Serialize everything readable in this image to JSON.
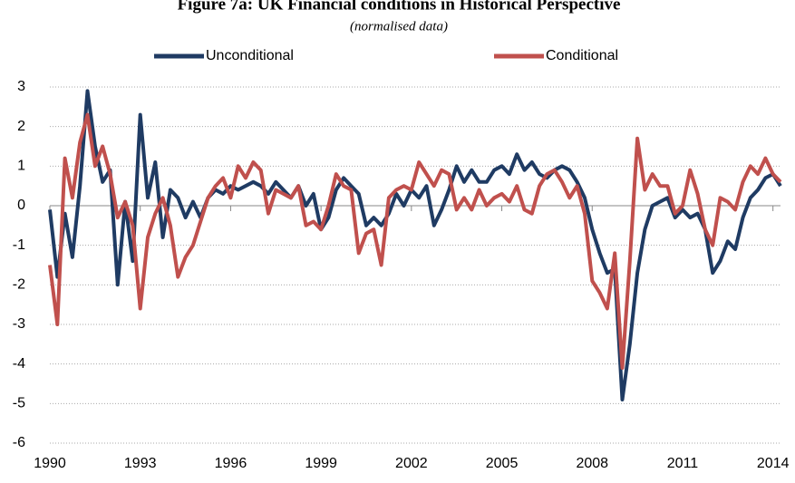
{
  "chart_data": {
    "type": "line",
    "title": "Figure 7a: UK Financial conditions in Historical Perspective",
    "subtitle": "(normalised data)",
    "x": [
      1990,
      1990.25,
      1990.5,
      1990.75,
      1991,
      1991.25,
      1991.5,
      1991.75,
      1992,
      1992.25,
      1992.5,
      1992.75,
      1993,
      1993.25,
      1993.5,
      1993.75,
      1994,
      1994.25,
      1994.5,
      1994.75,
      1995,
      1995.25,
      1995.5,
      1995.75,
      1996,
      1996.25,
      1996.5,
      1996.75,
      1997,
      1997.25,
      1997.5,
      1997.75,
      1998,
      1998.25,
      1998.5,
      1998.75,
      1999,
      1999.25,
      1999.5,
      1999.75,
      2000,
      2000.25,
      2000.5,
      2000.75,
      2001,
      2001.25,
      2001.5,
      2001.75,
      2002,
      2002.25,
      2002.5,
      2002.75,
      2003,
      2003.25,
      2003.5,
      2003.75,
      2004,
      2004.25,
      2004.5,
      2004.75,
      2005,
      2005.25,
      2005.5,
      2005.75,
      2006,
      2006.25,
      2006.5,
      2006.75,
      2007,
      2007.25,
      2007.5,
      2007.75,
      2008,
      2008.25,
      2008.5,
      2008.75,
      2009,
      2009.25,
      2009.5,
      2009.75,
      2010,
      2010.25,
      2010.5,
      2010.75,
      2011,
      2011.25,
      2011.5,
      2011.75,
      2012,
      2012.25,
      2012.5,
      2012.75,
      2013,
      2013.25,
      2013.5,
      2013.75,
      2014,
      2014.25
    ],
    "series": [
      {
        "name": "Unconditional",
        "color": "#1f3b63",
        "values": [
          -0.1,
          -1.8,
          -0.2,
          -1.3,
          0.5,
          2.9,
          1.5,
          0.6,
          0.9,
          -2.0,
          0.1,
          -1.4,
          2.3,
          0.2,
          1.1,
          -0.8,
          0.4,
          0.2,
          -0.3,
          0.1,
          -0.3,
          0.2,
          0.4,
          0.3,
          0.5,
          0.4,
          0.5,
          0.6,
          0.5,
          0.3,
          0.6,
          0.4,
          0.2,
          0.5,
          0.0,
          0.3,
          -0.6,
          -0.3,
          0.4,
          0.7,
          0.5,
          0.3,
          -0.5,
          -0.3,
          -0.5,
          -0.2,
          0.3,
          0.0,
          0.4,
          0.2,
          0.5,
          -0.5,
          -0.1,
          0.4,
          1.0,
          0.6,
          0.9,
          0.6,
          0.6,
          0.9,
          1.0,
          0.8,
          1.3,
          0.9,
          1.1,
          0.8,
          0.7,
          0.9,
          1.0,
          0.9,
          0.6,
          0.2,
          -0.6,
          -1.2,
          -1.7,
          -1.6,
          -4.9,
          -3.5,
          -1.7,
          -0.6,
          0.0,
          0.1,
          0.2,
          -0.3,
          -0.1,
          -0.3,
          -0.2,
          -0.6,
          -1.7,
          -1.4,
          -0.9,
          -1.1,
          -0.3,
          0.2,
          0.4,
          0.7,
          0.8,
          0.5
        ]
      },
      {
        "name": "Conditional",
        "color": "#c0504d",
        "values": [
          -1.5,
          -3.0,
          1.2,
          0.2,
          1.6,
          2.3,
          1.0,
          1.5,
          0.8,
          -0.3,
          0.1,
          -0.5,
          -2.6,
          -0.8,
          -0.2,
          0.2,
          -0.5,
          -1.8,
          -1.3,
          -1.0,
          -0.4,
          0.2,
          0.5,
          0.7,
          0.2,
          1.0,
          0.7,
          1.1,
          0.9,
          -0.2,
          0.4,
          0.3,
          0.2,
          0.5,
          -0.5,
          -0.4,
          -0.6,
          0.0,
          0.8,
          0.5,
          0.4,
          -1.2,
          -0.7,
          -0.6,
          -1.5,
          0.2,
          0.4,
          0.5,
          0.4,
          1.1,
          0.8,
          0.5,
          0.9,
          0.8,
          -0.1,
          0.2,
          -0.1,
          0.4,
          0.0,
          0.2,
          0.3,
          0.1,
          0.5,
          -0.1,
          -0.2,
          0.5,
          0.8,
          0.9,
          0.6,
          0.2,
          0.5,
          -0.2,
          -1.9,
          -2.2,
          -2.6,
          -1.2,
          -4.1,
          -1.4,
          1.7,
          0.4,
          0.8,
          0.5,
          0.5,
          -0.2,
          0.0,
          0.9,
          0.3,
          -0.6,
          -1.0,
          0.2,
          0.1,
          -0.1,
          0.6,
          1.0,
          0.8,
          1.2,
          0.8,
          0.6
        ]
      }
    ],
    "xlim": [
      1990,
      2014.25
    ],
    "ylim": [
      -6,
      3
    ],
    "xticks": [
      1990,
      1993,
      1996,
      1999,
      2002,
      2005,
      2008,
      2011,
      2014
    ],
    "yticks": [
      -6,
      -5,
      -4,
      -3,
      -2,
      -1,
      0,
      1,
      2,
      3
    ],
    "grid": true,
    "legend": "top"
  }
}
